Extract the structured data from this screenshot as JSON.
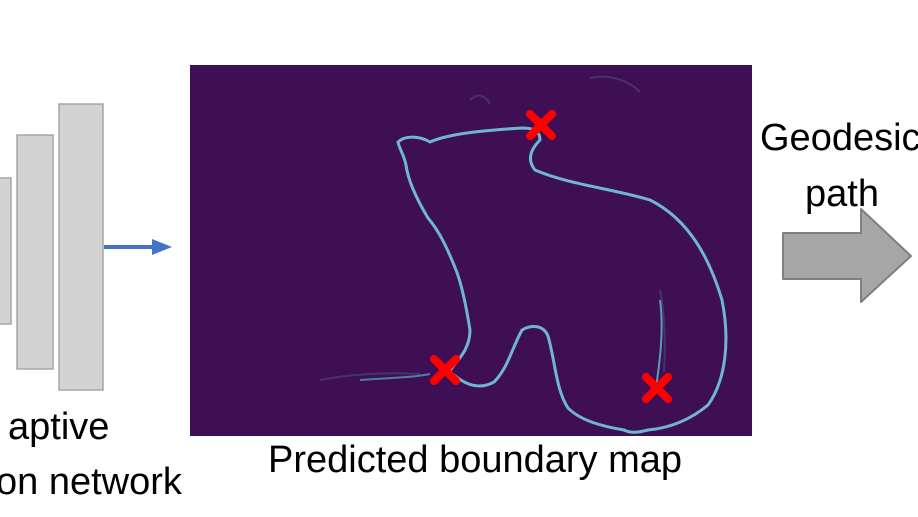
{
  "network": {
    "line1": "aptive",
    "line2": "on network"
  },
  "boundary_map": {
    "caption": "Predicted boundary map",
    "background_color": "#3f0f56",
    "edge_color": "#6fb6cf",
    "marker_color": "#ff0000"
  },
  "geodesic": {
    "line1": "Geodesic",
    "line2": "path"
  },
  "colors": {
    "layer_fill": "#d3d3d3",
    "layer_stroke": "#a6a6a6",
    "arrow_blue": "#4472c4",
    "arrow_gray": "#a6a6a6",
    "arrow_gray_stroke": "#7f7f7f"
  },
  "icons": {
    "keypoint": "x-marker-icon"
  }
}
